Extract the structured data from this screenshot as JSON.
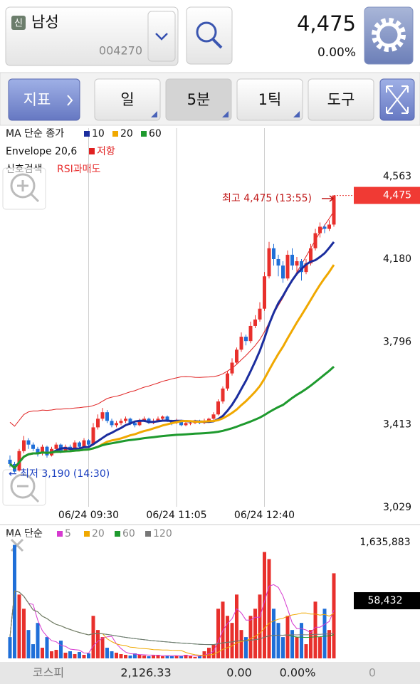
{
  "header": {
    "badge": "신",
    "name": "남성",
    "code": "004270",
    "price": "4,475",
    "change": "0.00%"
  },
  "toolbar": {
    "indicator": "지표",
    "periods": [
      "일",
      "5분",
      "1틱"
    ],
    "tools": "도구"
  },
  "chart_data": [
    {
      "type": "candlestick",
      "ma_label": "MA 단순 종가",
      "moving_averages": [
        {
          "period": 10,
          "color": "#1b2d9e"
        },
        {
          "period": 20,
          "color": "#f0a800"
        },
        {
          "period": 60,
          "color": "#1e9a2e"
        }
      ],
      "envelope": {
        "name": "Envelope",
        "period": 20,
        "percent": 6,
        "label": "저항",
        "color": "#e02020"
      },
      "signal": {
        "label": "신호검색",
        "value": "RSI과매도"
      },
      "categories": [
        null,
        null,
        null,
        null,
        null,
        null,
        null,
        null,
        null,
        null,
        null,
        null,
        null,
        null,
        null,
        null,
        null,
        "06/24 09:30",
        null,
        null,
        null,
        null,
        null,
        null,
        null,
        null,
        null,
        null,
        null,
        null,
        null,
        null,
        null,
        null,
        null,
        null,
        "06/24 11:05",
        null,
        null,
        null,
        null,
        null,
        null,
        null,
        null,
        null,
        null,
        null,
        null,
        null,
        null,
        null,
        null,
        null,
        null,
        "06/24 12:40",
        null,
        null,
        null,
        null,
        null,
        null,
        null,
        null,
        null,
        null,
        null,
        null,
        null,
        null,
        null
      ],
      "open": [
        3250,
        3230,
        3200,
        3290,
        3340,
        3320,
        3300,
        3280,
        3310,
        3270,
        3300,
        3320,
        3290,
        3310,
        3300,
        3330,
        3310,
        3340,
        3320,
        3400,
        3440,
        3470,
        3430,
        3410,
        3420,
        3430,
        3440,
        3420,
        3410,
        3430,
        3440,
        3420,
        3430,
        3440,
        3450,
        3430,
        3420,
        3430,
        3410,
        3420,
        3420,
        3430,
        3420,
        3430,
        3440,
        3460,
        3520,
        3580,
        3650,
        3700,
        3760,
        3820,
        3800,
        3870,
        3900,
        3950,
        4100,
        4230,
        4180,
        4150,
        4090,
        4200,
        4150,
        4170,
        4120,
        4160,
        4230,
        4300,
        4330,
        4320,
        4340
      ],
      "high": [
        3270,
        3240,
        3300,
        3360,
        3350,
        3330,
        3310,
        3320,
        3315,
        3310,
        3330,
        3325,
        3320,
        3320,
        3340,
        3335,
        3350,
        3345,
        3420,
        3460,
        3490,
        3480,
        3440,
        3430,
        3440,
        3450,
        3445,
        3425,
        3440,
        3450,
        3445,
        3440,
        3450,
        3455,
        3455,
        3435,
        3440,
        3435,
        3425,
        3430,
        3435,
        3435,
        3440,
        3445,
        3470,
        3530,
        3590,
        3660,
        3720,
        3770,
        3840,
        3830,
        3890,
        3920,
        3980,
        4120,
        4260,
        4250,
        4200,
        4170,
        4220,
        4230,
        4190,
        4180,
        4180,
        4250,
        4320,
        4350,
        4340,
        4360,
        4475
      ],
      "low": [
        3215,
        3190,
        3195,
        3280,
        3300,
        3290,
        3265,
        3270,
        3260,
        3265,
        3290,
        3280,
        3285,
        3290,
        3295,
        3300,
        3305,
        3310,
        3315,
        3390,
        3430,
        3420,
        3400,
        3400,
        3410,
        3420,
        3410,
        3400,
        3405,
        3425,
        3415,
        3415,
        3425,
        3430,
        3425,
        3410,
        3415,
        3405,
        3405,
        3410,
        3415,
        3415,
        3415,
        3425,
        3435,
        3455,
        3510,
        3570,
        3640,
        3690,
        3750,
        3780,
        3790,
        3860,
        3890,
        3940,
        4090,
        4150,
        4100,
        4070,
        4080,
        4130,
        4120,
        4080,
        4110,
        4150,
        4220,
        4280,
        4300,
        4310,
        4330
      ],
      "close": [
        3230,
        3195,
        3290,
        3340,
        3320,
        3300,
        3280,
        3310,
        3270,
        3300,
        3320,
        3290,
        3310,
        3300,
        3330,
        3310,
        3340,
        3320,
        3400,
        3440,
        3470,
        3430,
        3410,
        3420,
        3430,
        3440,
        3420,
        3410,
        3430,
        3440,
        3420,
        3430,
        3440,
        3450,
        3430,
        3420,
        3430,
        3410,
        3420,
        3420,
        3430,
        3420,
        3430,
        3440,
        3460,
        3520,
        3580,
        3650,
        3700,
        3760,
        3820,
        3800,
        3870,
        3900,
        3950,
        4100,
        4230,
        4180,
        4150,
        4090,
        4200,
        4150,
        4170,
        4120,
        4160,
        4230,
        4300,
        4330,
        4320,
        4340,
        4475
      ],
      "up_color": "#e8302c",
      "down_color": "#1f6fd8",
      "ylim": [
        2956,
        4787
      ],
      "yticks": [
        {
          "value": 3029,
          "label": "3,029"
        },
        {
          "value": 3413,
          "label": "3,413"
        },
        {
          "value": 3796,
          "label": "3,796"
        },
        {
          "value": 4180,
          "label": "4,180"
        },
        {
          "value": 4563,
          "label": "4,563"
        }
      ],
      "current_price": {
        "value": 4475,
        "label": "4,475"
      },
      "annotations": [
        "최고 4,475 (13:55)",
        "← 최저 3,190 (14:30)"
      ]
    },
    {
      "type": "bar",
      "ma_label": "MA 단순",
      "moving_averages": [
        {
          "period": 5,
          "color": "#d63ad0"
        },
        {
          "period": 20,
          "color": "#f0a800"
        },
        {
          "period": 60,
          "color": "#1e9a2e"
        },
        {
          "period": 120,
          "color": "#777777"
        }
      ],
      "values": [
        300000,
        1600000,
        900000,
        700000,
        400000,
        200000,
        500000,
        150000,
        300000,
        100000,
        120000,
        250000,
        80000,
        100000,
        60000,
        90000,
        50000,
        70000,
        600000,
        400000,
        300000,
        150000,
        100000,
        80000,
        60000,
        50000,
        40000,
        70000,
        50000,
        40000,
        30000,
        40000,
        50000,
        30000,
        40000,
        30000,
        40000,
        30000,
        50000,
        30000,
        20000,
        30000,
        100000,
        150000,
        200000,
        700000,
        800000,
        600000,
        500000,
        900000,
        400000,
        300000,
        600000,
        700000,
        900000,
        1500000,
        1400000,
        700000,
        500000,
        300000,
        600000,
        400000,
        300000,
        500000,
        200000,
        400000,
        800000,
        300000,
        700000,
        400000,
        1200000
      ],
      "ylim": [
        0,
        1635883
      ],
      "yticks": [
        {
          "value": 1635883,
          "label": "1,635,883"
        }
      ],
      "current_volume": "58,432"
    }
  ],
  "footer": {
    "index": "코스피",
    "value": "2,126.33",
    "change": "0.00",
    "percent": "0.00%",
    "volume": "0"
  }
}
